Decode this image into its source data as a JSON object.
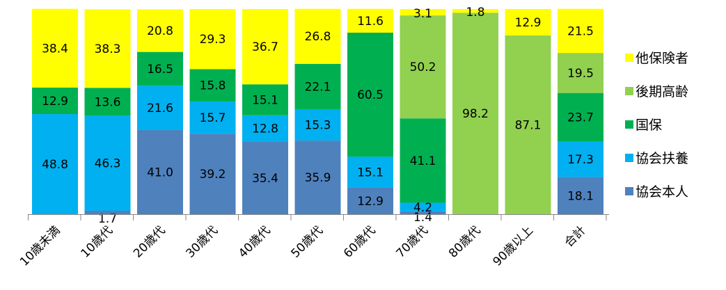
{
  "chart_data": {
    "type": "bar",
    "stacked": true,
    "percent": true,
    "title": "",
    "xlabel": "",
    "ylabel": "",
    "ylim": [
      0,
      100
    ],
    "grid": false,
    "legend_position": "right",
    "categories": [
      "10歳未満",
      "10歳代",
      "20歳代",
      "30歳代",
      "40歳代",
      "50歳代",
      "60歳代",
      "70歳代",
      "80歳代",
      "90歳以上",
      "合計"
    ],
    "series": [
      {
        "name": "協会本人",
        "color": "#4f81bd",
        "values": [
          0,
          1.7,
          41.0,
          39.2,
          35.4,
          35.9,
          12.9,
          1.4,
          0,
          0,
          18.1
        ]
      },
      {
        "name": "協会扶養",
        "color": "#00b0f0",
        "values": [
          48.8,
          46.3,
          21.6,
          15.7,
          12.8,
          15.3,
          15.1,
          4.2,
          0,
          0,
          17.3
        ]
      },
      {
        "name": "国保",
        "color": "#00b050",
        "values": [
          12.9,
          13.6,
          16.5,
          15.8,
          15.1,
          22.1,
          60.5,
          41.1,
          0,
          0,
          23.7
        ]
      },
      {
        "name": "後期高齢",
        "color": "#92d050",
        "values": [
          0,
          0,
          0,
          0,
          0,
          0,
          0,
          50.2,
          98.2,
          87.1,
          19.5
        ]
      },
      {
        "name": "他保険者",
        "color": "#ffff00",
        "values": [
          38.4,
          38.3,
          20.8,
          29.3,
          36.7,
          26.8,
          11.6,
          3.1,
          1.8,
          12.9,
          21.5
        ]
      }
    ],
    "data_labels": [
      [
        "",
        "48.8",
        "12.9",
        "",
        "38.4"
      ],
      [
        "1.7",
        "46.3",
        "13.6",
        "",
        "38.3"
      ],
      [
        "41.0",
        "21.6",
        "16.5",
        "",
        "20.8"
      ],
      [
        "39.2",
        "15.7",
        "15.8",
        "",
        "29.3"
      ],
      [
        "35.4",
        "12.8",
        "15.1",
        "",
        "36.7"
      ],
      [
        "35.9",
        "15.3",
        "22.1",
        "",
        "26.8"
      ],
      [
        "12.9",
        "15.1",
        "60.5",
        "",
        "11.6"
      ],
      [
        "1.4",
        "4.2",
        "41.1",
        "50.2",
        "3.1"
      ],
      [
        "",
        "",
        "",
        "98.2",
        "1.8"
      ],
      [
        "",
        "",
        "",
        "87.1",
        "12.9"
      ],
      [
        "18.1",
        "17.3",
        "23.7",
        "19.5",
        "21.5"
      ]
    ],
    "legend_order": [
      4,
      3,
      2,
      1,
      0
    ]
  }
}
